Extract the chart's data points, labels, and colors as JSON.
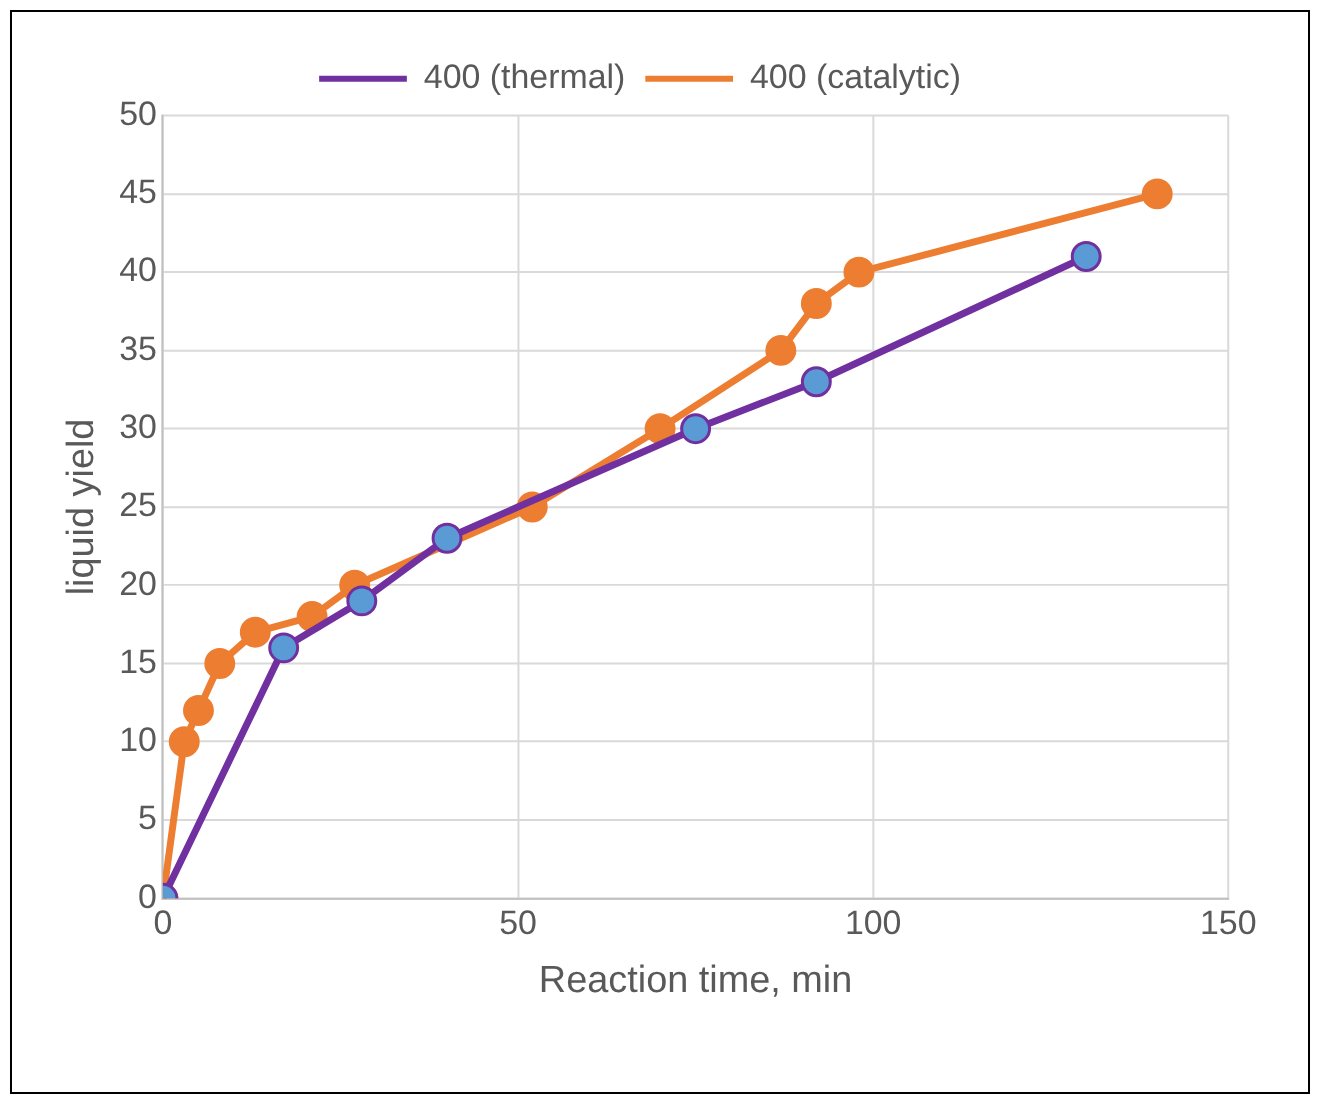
{
  "chart_data": {
    "type": "line",
    "xlabel": "Reaction time, min",
    "ylabel": "liquid yield",
    "series": [
      {
        "name": "400 (thermal)",
        "color": "#7030a0",
        "colors": [
          "#5b9bd5",
          "#5b9bd5",
          "#5b9bd5",
          "#5b9bd5",
          "#5b9bd5",
          "#5b9bd5",
          "#5b9bd5"
        ],
        "x": [
          0,
          17,
          28,
          40,
          75,
          92,
          130
        ],
        "values": [
          0,
          16,
          19,
          23,
          30,
          33,
          41
        ]
      },
      {
        "name": "400 (catalytic)",
        "color": "#ed7d31",
        "x": [
          0,
          3,
          5,
          8,
          13,
          21,
          27,
          52,
          70,
          87,
          92,
          98,
          140
        ],
        "values": [
          0,
          10,
          12,
          15,
          17,
          18,
          20,
          25,
          30,
          35,
          38,
          40,
          45
        ]
      }
    ],
    "xlim": [
      0,
      150
    ],
    "xticks": [
      0,
      50,
      100,
      150
    ],
    "ylim": [
      0,
      50
    ],
    "yticks": [
      0,
      5,
      10,
      15,
      20,
      25,
      30,
      35,
      40,
      45,
      50
    ],
    "grid": true,
    "legend": "top",
    "marker": "circle",
    "line_style": "solid"
  }
}
